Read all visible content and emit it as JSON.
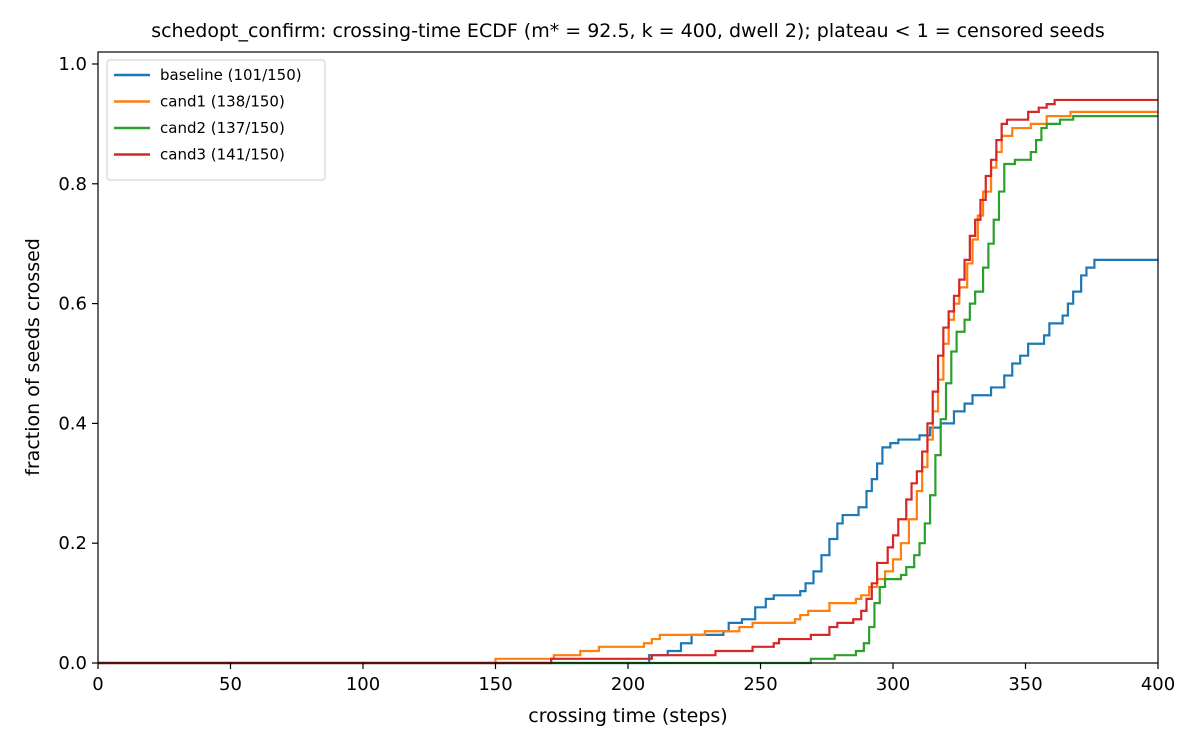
{
  "chart_data": {
    "type": "line",
    "step": true,
    "title": "schedopt_confirm: crossing-time ECDF (m* = 92.5, k = 400, dwell 2); plateau < 1 = censored seeds",
    "xlabel": "crossing time (steps)",
    "ylabel": "fraction of seeds crossed",
    "xlim": [
      0,
      400
    ],
    "ylim": [
      0,
      1.02
    ],
    "xticks": [
      0,
      50,
      100,
      150,
      200,
      250,
      300,
      350,
      400
    ],
    "yticks": [
      0.0,
      0.2,
      0.4,
      0.6,
      0.8,
      1.0
    ],
    "ytick_labels": [
      "0.0",
      "0.2",
      "0.4",
      "0.6",
      "0.8",
      "1.0"
    ],
    "grid": false,
    "legend_position": "top-left",
    "series": [
      {
        "name": "baseline (101/150)",
        "color": "#1f77b4",
        "points": [
          [
            0,
            0
          ],
          [
            208,
            0
          ],
          [
            208,
            0.013
          ],
          [
            215,
            0.02
          ],
          [
            220,
            0.033
          ],
          [
            224,
            0.047
          ],
          [
            236,
            0.053
          ],
          [
            238,
            0.067
          ],
          [
            243,
            0.073
          ],
          [
            248,
            0.093
          ],
          [
            252,
            0.107
          ],
          [
            255,
            0.113
          ],
          [
            265,
            0.12
          ],
          [
            267,
            0.133
          ],
          [
            270,
            0.153
          ],
          [
            273,
            0.18
          ],
          [
            276,
            0.207
          ],
          [
            279,
            0.233
          ],
          [
            281,
            0.247
          ],
          [
            287,
            0.26
          ],
          [
            290,
            0.287
          ],
          [
            292,
            0.307
          ],
          [
            294,
            0.333
          ],
          [
            296,
            0.36
          ],
          [
            299,
            0.367
          ],
          [
            302,
            0.373
          ],
          [
            310,
            0.38
          ],
          [
            314,
            0.393
          ],
          [
            318,
            0.4
          ],
          [
            323,
            0.42
          ],
          [
            327,
            0.433
          ],
          [
            330,
            0.447
          ],
          [
            337,
            0.46
          ],
          [
            342,
            0.48
          ],
          [
            345,
            0.5
          ],
          [
            348,
            0.513
          ],
          [
            351,
            0.533
          ],
          [
            357,
            0.547
          ],
          [
            359,
            0.567
          ],
          [
            364,
            0.58
          ],
          [
            366,
            0.6
          ],
          [
            368,
            0.62
          ],
          [
            371,
            0.647
          ],
          [
            373,
            0.66
          ],
          [
            376,
            0.673
          ],
          [
            400,
            0.673
          ]
        ]
      },
      {
        "name": "cand1 (138/150)",
        "color": "#ff7f0e",
        "points": [
          [
            0,
            0
          ],
          [
            150,
            0
          ],
          [
            150,
            0.007
          ],
          [
            172,
            0.013
          ],
          [
            182,
            0.02
          ],
          [
            189,
            0.027
          ],
          [
            206,
            0.033
          ],
          [
            209,
            0.04
          ],
          [
            212,
            0.047
          ],
          [
            229,
            0.053
          ],
          [
            242,
            0.06
          ],
          [
            247,
            0.067
          ],
          [
            263,
            0.073
          ],
          [
            265,
            0.08
          ],
          [
            268,
            0.087
          ],
          [
            276,
            0.1
          ],
          [
            286,
            0.107
          ],
          [
            288,
            0.113
          ],
          [
            291,
            0.127
          ],
          [
            294,
            0.14
          ],
          [
            297,
            0.153
          ],
          [
            300,
            0.173
          ],
          [
            303,
            0.2
          ],
          [
            306,
            0.24
          ],
          [
            309,
            0.287
          ],
          [
            311,
            0.327
          ],
          [
            313,
            0.373
          ],
          [
            315,
            0.42
          ],
          [
            317,
            0.473
          ],
          [
            319,
            0.533
          ],
          [
            321,
            0.573
          ],
          [
            323,
            0.6
          ],
          [
            325,
            0.627
          ],
          [
            328,
            0.667
          ],
          [
            330,
            0.707
          ],
          [
            332,
            0.747
          ],
          [
            334,
            0.787
          ],
          [
            337,
            0.827
          ],
          [
            339,
            0.853
          ],
          [
            341,
            0.88
          ],
          [
            345,
            0.893
          ],
          [
            352,
            0.9
          ],
          [
            358,
            0.913
          ],
          [
            367,
            0.92
          ],
          [
            400,
            0.92
          ]
        ]
      },
      {
        "name": "cand2 (137/150)",
        "color": "#2ca02c",
        "points": [
          [
            0,
            0
          ],
          [
            269,
            0
          ],
          [
            269,
            0.007
          ],
          [
            278,
            0.013
          ],
          [
            286,
            0.02
          ],
          [
            289,
            0.033
          ],
          [
            291,
            0.06
          ],
          [
            293,
            0.1
          ],
          [
            295,
            0.127
          ],
          [
            297,
            0.14
          ],
          [
            303,
            0.147
          ],
          [
            305,
            0.16
          ],
          [
            308,
            0.18
          ],
          [
            310,
            0.2
          ],
          [
            312,
            0.233
          ],
          [
            314,
            0.28
          ],
          [
            316,
            0.347
          ],
          [
            318,
            0.407
          ],
          [
            320,
            0.467
          ],
          [
            322,
            0.52
          ],
          [
            324,
            0.553
          ],
          [
            327,
            0.573
          ],
          [
            329,
            0.6
          ],
          [
            331,
            0.62
          ],
          [
            334,
            0.66
          ],
          [
            336,
            0.7
          ],
          [
            338,
            0.74
          ],
          [
            340,
            0.787
          ],
          [
            342,
            0.833
          ],
          [
            346,
            0.84
          ],
          [
            352,
            0.853
          ],
          [
            354,
            0.873
          ],
          [
            356,
            0.893
          ],
          [
            358,
            0.9
          ],
          [
            363,
            0.907
          ],
          [
            368,
            0.913
          ],
          [
            400,
            0.913
          ]
        ]
      },
      {
        "name": "cand3 (141/150)",
        "color": "#d62728",
        "points": [
          [
            0,
            0
          ],
          [
            171,
            0
          ],
          [
            171,
            0.007
          ],
          [
            209,
            0.013
          ],
          [
            233,
            0.02
          ],
          [
            236,
            0.02
          ],
          [
            247,
            0.027
          ],
          [
            255,
            0.033
          ],
          [
            257,
            0.04
          ],
          [
            269,
            0.047
          ],
          [
            276,
            0.06
          ],
          [
            279,
            0.067
          ],
          [
            285,
            0.073
          ],
          [
            288,
            0.087
          ],
          [
            290,
            0.107
          ],
          [
            292,
            0.133
          ],
          [
            294,
            0.167
          ],
          [
            298,
            0.193
          ],
          [
            300,
            0.213
          ],
          [
            302,
            0.24
          ],
          [
            305,
            0.273
          ],
          [
            307,
            0.3
          ],
          [
            309,
            0.32
          ],
          [
            311,
            0.353
          ],
          [
            313,
            0.4
          ],
          [
            315,
            0.453
          ],
          [
            317,
            0.513
          ],
          [
            319,
            0.56
          ],
          [
            321,
            0.587
          ],
          [
            323,
            0.613
          ],
          [
            325,
            0.64
          ],
          [
            327,
            0.673
          ],
          [
            329,
            0.713
          ],
          [
            331,
            0.74
          ],
          [
            333,
            0.773
          ],
          [
            335,
            0.813
          ],
          [
            337,
            0.84
          ],
          [
            339,
            0.873
          ],
          [
            341,
            0.9
          ],
          [
            343,
            0.907
          ],
          [
            351,
            0.92
          ],
          [
            355,
            0.927
          ],
          [
            358,
            0.933
          ],
          [
            361,
            0.94
          ],
          [
            400,
            0.94
          ]
        ]
      }
    ]
  }
}
